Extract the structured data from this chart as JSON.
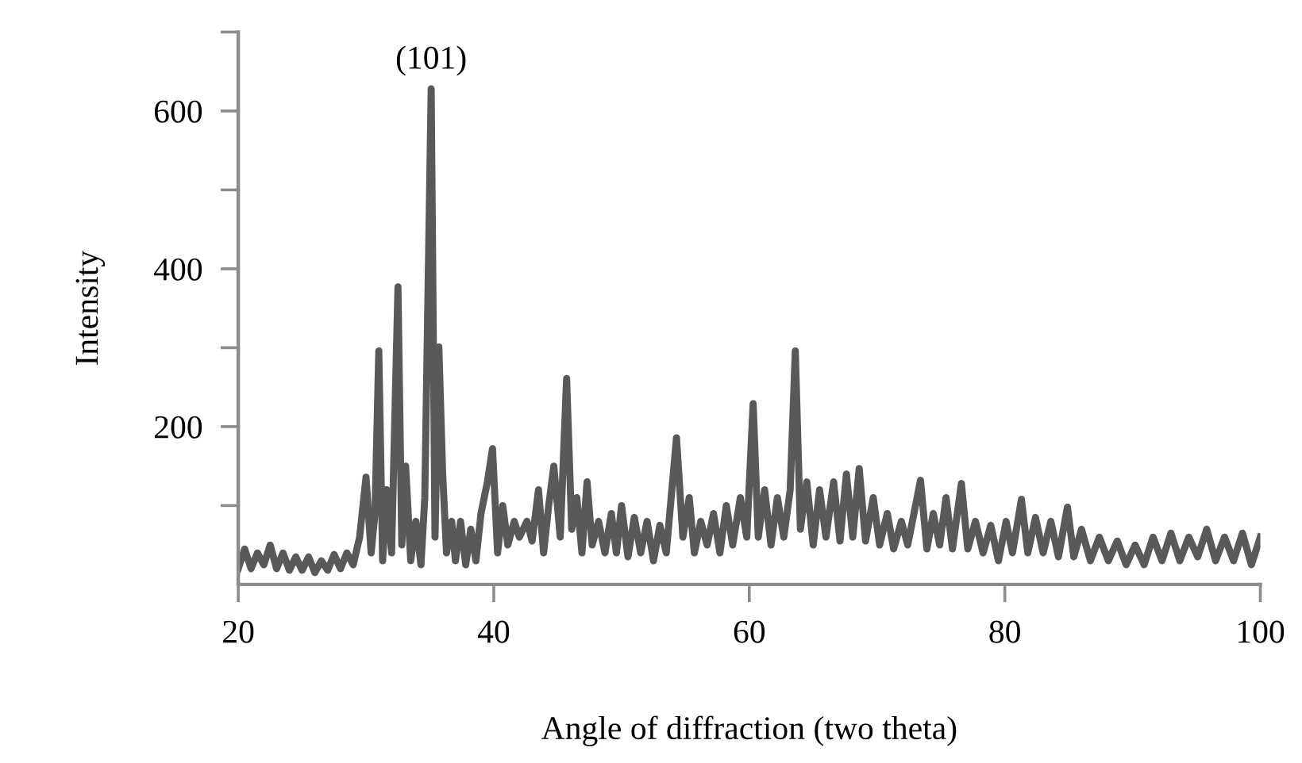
{
  "chart_data": {
    "type": "line",
    "xlabel": "Angle of diffraction (two theta)",
    "ylabel": "Intensity",
    "annotations": [
      {
        "text": "(101)",
        "x": 35.1,
        "y": 628
      }
    ],
    "x": [
      20,
      20.5,
      21,
      21.5,
      22,
      22.5,
      23,
      23.5,
      24,
      24.5,
      25,
      25.5,
      26,
      26.5,
      27,
      27.5,
      28,
      28.5,
      29,
      29.5,
      30.0,
      30.4,
      30.7,
      31.0,
      31.3,
      31.6,
      32.0,
      32.5,
      32.8,
      33.1,
      33.5,
      33.9,
      34.3,
      34.6,
      35.1,
      35.4,
      35.7,
      36.0,
      36.3,
      36.7,
      37.0,
      37.4,
      37.8,
      38.2,
      38.6,
      39.0,
      39.5,
      39.9,
      40.3,
      40.7,
      41.1,
      41.6,
      42.0,
      42.6,
      43.0,
      43.5,
      43.9,
      44.3,
      44.7,
      45.2,
      45.7,
      46.1,
      46.5,
      46.9,
      47.3,
      47.7,
      48.2,
      48.7,
      49.2,
      49.6,
      50.0,
      50.5,
      51.0,
      51.5,
      52.0,
      52.5,
      53.0,
      53.5,
      54.3,
      54.8,
      55.3,
      55.7,
      56.2,
      56.7,
      57.2,
      57.7,
      58.2,
      58.7,
      59.3,
      59.8,
      60.3,
      60.7,
      61.2,
      61.7,
      62.2,
      62.7,
      63.2,
      63.6,
      64.0,
      64.5,
      65.0,
      65.5,
      66.0,
      66.6,
      67.1,
      67.6,
      68.1,
      68.6,
      69.1,
      69.7,
      70.2,
      70.8,
      71.3,
      71.9,
      72.4,
      73.4,
      73.9,
      74.4,
      74.9,
      75.4,
      75.9,
      76.6,
      77.1,
      77.7,
      78.3,
      78.9,
      79.5,
      80.1,
      80.6,
      81.3,
      81.8,
      82.4,
      83.0,
      83.6,
      84.2,
      84.9,
      85.4,
      86.0,
      86.7,
      87.4,
      88.1,
      88.8,
      89.5,
      90.2,
      90.9,
      91.6,
      92.3,
      93.0,
      93.7,
      94.4,
      95.1,
      95.8,
      96.5,
      97.2,
      97.9,
      98.6,
      99.3,
      100
    ],
    "series": [
      {
        "color": "#595959",
        "values": [
          20,
          45,
          20,
          40,
          25,
          50,
          20,
          40,
          18,
          35,
          18,
          35,
          15,
          30,
          18,
          38,
          20,
          40,
          25,
          60,
          136,
          40,
          90,
          296,
          30,
          120,
          40,
          377,
          50,
          150,
          30,
          80,
          25,
          110,
          628,
          60,
          301,
          140,
          40,
          80,
          30,
          80,
          25,
          70,
          30,
          90,
          130,
          172,
          40,
          100,
          50,
          80,
          60,
          80,
          55,
          120,
          40,
          100,
          150,
          60,
          261,
          70,
          110,
          40,
          130,
          50,
          80,
          40,
          90,
          40,
          100,
          35,
          85,
          40,
          80,
          30,
          75,
          40,
          186,
          60,
          110,
          40,
          80,
          50,
          90,
          40,
          100,
          50,
          110,
          60,
          229,
          60,
          120,
          50,
          110,
          60,
          120,
          296,
          70,
          130,
          50,
          120,
          60,
          130,
          55,
          140,
          60,
          147,
          55,
          110,
          50,
          90,
          45,
          80,
          50,
          132,
          45,
          90,
          50,
          110,
          45,
          128,
          45,
          80,
          40,
          75,
          30,
          80,
          40,
          108,
          40,
          85,
          40,
          80,
          35,
          98,
          35,
          70,
          30,
          60,
          30,
          55,
          25,
          50,
          25,
          60,
          30,
          65,
          30,
          60,
          35,
          70,
          30,
          60,
          30,
          65,
          25,
          60
        ]
      }
    ],
    "xlim": [
      20,
      100
    ],
    "xticks": [
      20,
      40,
      60,
      80,
      100
    ],
    "ylim": [
      0,
      700
    ],
    "yticks": [
      {
        "value": 100,
        "label": null
      },
      200,
      {
        "value": 300,
        "label": null
      },
      400,
      {
        "value": 500,
        "label": null
      },
      600,
      {
        "value": 700,
        "label": null
      }
    ],
    "grid": false,
    "line_style": "solid",
    "marker": "none"
  }
}
